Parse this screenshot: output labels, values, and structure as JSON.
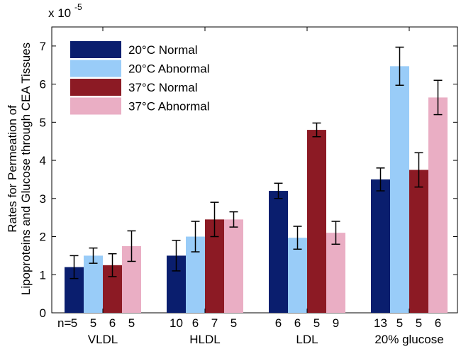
{
  "chart_data": {
    "type": "bar",
    "title": "",
    "xlabel": "",
    "ylabel_lines": [
      "Rates for Permeation of",
      "Lipoproteins and Glucose through CEA Tissues"
    ],
    "ylim": [
      0,
      7.5
    ],
    "yticks": [
      0,
      1,
      2,
      3,
      4,
      5,
      6,
      7
    ],
    "y_multiplier_label": "x 10",
    "y_multiplier_exponent": "-5",
    "grid": false,
    "legend_position": "top-left",
    "n_prefix": "n=",
    "categories": [
      "VLDL",
      "HLDL",
      "LDL",
      "20% glucose"
    ],
    "series": [
      {
        "name": "20°C Normal",
        "color": "#0a1e6e",
        "values": [
          1.2,
          1.5,
          3.2,
          3.5
        ],
        "errors": [
          0.3,
          0.4,
          0.2,
          0.3
        ],
        "n": [
          "5",
          "10",
          "6",
          "13"
        ]
      },
      {
        "name": "20°C Abnormal",
        "color": "#99ccf8",
        "values": [
          1.5,
          2.0,
          1.97,
          6.47
        ],
        "errors": [
          0.2,
          0.4,
          0.3,
          0.5
        ],
        "n": [
          "5",
          "6",
          "6",
          "5"
        ]
      },
      {
        "name": "37°C Normal",
        "color": "#8c1a24",
        "values": [
          1.25,
          2.45,
          4.8,
          3.75
        ],
        "errors": [
          0.3,
          0.45,
          0.18,
          0.45
        ],
        "n": [
          "6",
          "7",
          "5",
          "5"
        ]
      },
      {
        "name": "37°C Abnormal",
        "color": "#eaaec4",
        "values": [
          1.75,
          2.45,
          2.1,
          5.65
        ],
        "errors": [
          0.4,
          0.2,
          0.3,
          0.45
        ],
        "n": [
          "5",
          "5",
          "9",
          "6"
        ]
      }
    ]
  }
}
